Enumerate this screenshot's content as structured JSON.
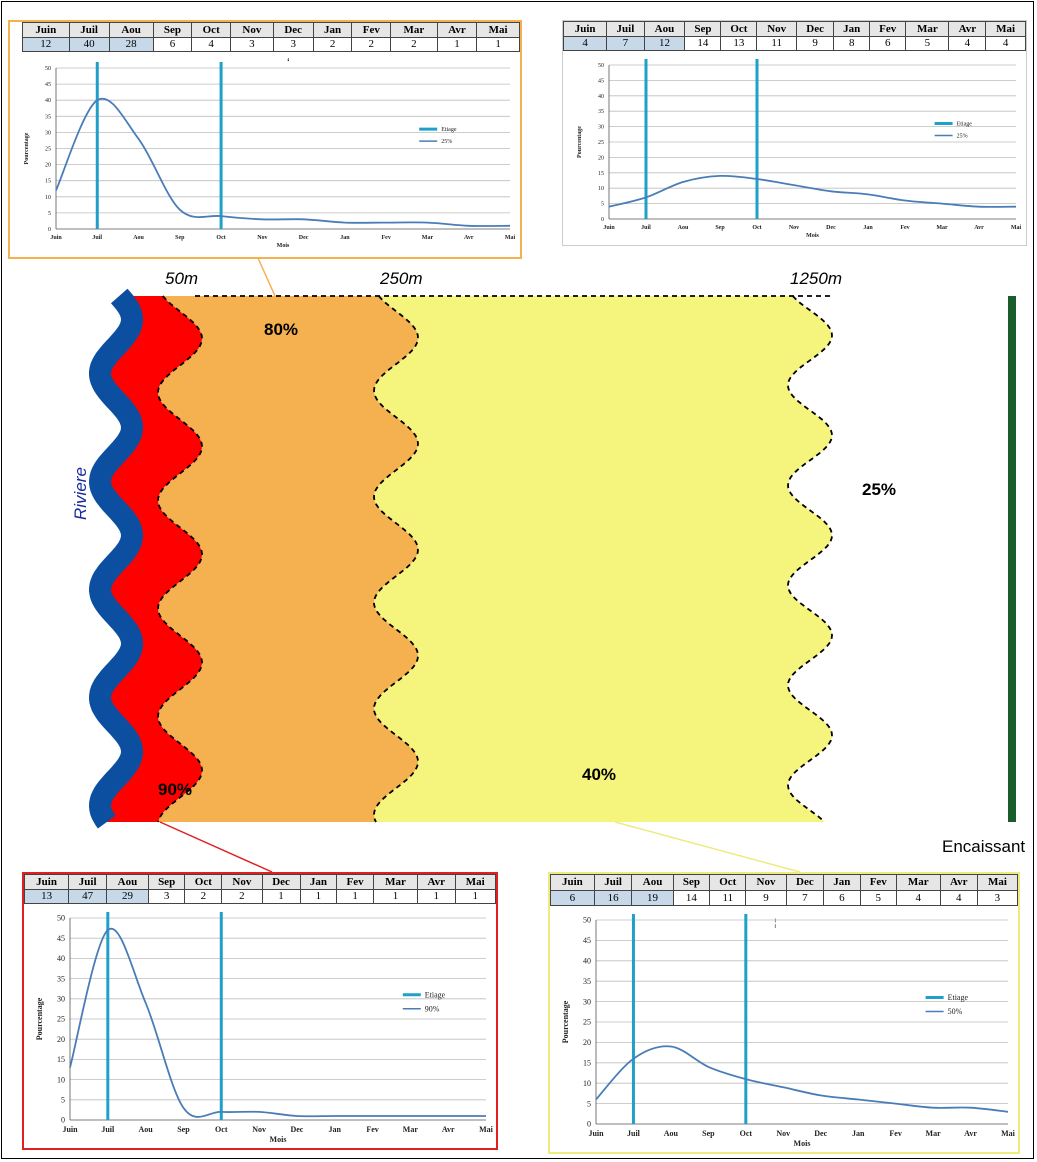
{
  "months": [
    "Juin",
    "Juil",
    "Aou",
    "Sep",
    "Oct",
    "Nov",
    "Dec",
    "Jan",
    "Fev",
    "Mar",
    "Avr",
    "Mai"
  ],
  "axis_months": [
    "Juin",
    "Juil",
    "Aou",
    "Sep",
    "Oct",
    "Nov",
    "Dec",
    "Jan",
    "Fev",
    "Mar",
    "Avr",
    "Mai"
  ],
  "axis_months_50": [
    "Juin",
    "Juil",
    "Aou",
    "Sep",
    "Oct",
    "Nov",
    "Dec",
    "Jan",
    "Fev",
    "Mar",
    "Avr",
    "Mai"
  ],
  "diagram": {
    "dist_50": "50m",
    "dist_250": "250m",
    "dist_1250": "1250m",
    "river": "Riviere",
    "encaissant": "Encaissant",
    "p90": "90%",
    "p80": "80%",
    "p40": "40%",
    "p25": "25%",
    "colors": {
      "river": "#0c4fa0",
      "zone90": "#ff0000",
      "zone80": "#f5b050",
      "zone40": "#f5f47c",
      "encaissant": "#1a5c2a"
    }
  },
  "charts_text": {
    "c80_mark": "ʻ",
    "c50_mark": "¦"
  },
  "chart_data": [
    {
      "id": "c80",
      "type": "line",
      "zone": "80%",
      "x": [
        "Juin",
        "Juil",
        "Aou",
        "Sep",
        "Oct",
        "Nov",
        "Dec",
        "Jan",
        "Fev",
        "Mar",
        "Avr",
        "Mai"
      ],
      "table_values": [
        12,
        40,
        28,
        6,
        4,
        3,
        3,
        2,
        2,
        2,
        1,
        1
      ],
      "series": [
        {
          "name": "25%",
          "values": [
            12,
            40,
            28,
            6,
            4,
            3,
            3,
            2,
            2,
            2,
            1,
            1
          ]
        }
      ],
      "legend": [
        "Etiage",
        "25%"
      ],
      "etiage_at": [
        "Juil",
        "Oct"
      ],
      "xlabel": "Mois",
      "ylabel": "Pourcentage",
      "ylim": [
        0,
        50
      ],
      "yticks": [
        0,
        5,
        10,
        15,
        20,
        25,
        30,
        35,
        40,
        45,
        50
      ],
      "border": "#f5b050",
      "highlight": [
        0,
        1,
        2
      ]
    },
    {
      "id": "c25",
      "type": "line",
      "zone": "25%",
      "x": [
        "Juin",
        "Juil",
        "Aou",
        "Sep",
        "Oct",
        "Nov",
        "Dec",
        "Jan",
        "Fev",
        "Mar",
        "Avr",
        "Mai"
      ],
      "table_values": [
        4,
        7,
        12,
        14,
        13,
        11,
        9,
        8,
        6,
        5,
        4,
        4
      ],
      "series": [
        {
          "name": "25%",
          "values": [
            4,
            7,
            12,
            14,
            13,
            11,
            9,
            8,
            6,
            5,
            4,
            4
          ]
        }
      ],
      "legend": [
        "Etiage",
        "25%"
      ],
      "etiage_at": [
        "Juil",
        "Oct"
      ],
      "xlabel": "Mois",
      "ylabel": "Pourcentage",
      "ylim": [
        0,
        50
      ],
      "yticks": [
        0,
        5,
        10,
        15,
        20,
        25,
        30,
        35,
        40,
        45,
        50
      ],
      "border": "#aaaaaa",
      "highlight": [
        0,
        1,
        2
      ]
    },
    {
      "id": "c90",
      "type": "line",
      "zone": "90%",
      "x": [
        "Juin",
        "Juil",
        "Aou",
        "Sep",
        "Oct",
        "Nov",
        "Dec",
        "Jan",
        "Fev",
        "Mar",
        "Avr",
        "Mai"
      ],
      "table_values": [
        13,
        47,
        29,
        3,
        2,
        2,
        1,
        1,
        1,
        1,
        1,
        1
      ],
      "series": [
        {
          "name": "90%",
          "values": [
            13,
            47,
            29,
            3,
            2,
            2,
            1,
            1,
            1,
            1,
            1,
            1
          ]
        }
      ],
      "legend": [
        "Etiage",
        "90%"
      ],
      "etiage_at": [
        "Juil",
        "Oct"
      ],
      "xlabel": "Mois",
      "ylabel": "Pourcentage",
      "ylim": [
        0,
        50
      ],
      "yticks": [
        0,
        5,
        10,
        15,
        20,
        25,
        30,
        35,
        40,
        45,
        50
      ],
      "border": "#e02020",
      "highlight": [
        0,
        1,
        2
      ]
    },
    {
      "id": "c50",
      "type": "line",
      "zone": "40%",
      "x": [
        "Juin",
        "Juil",
        "Aou",
        "Sep",
        "Oct",
        "Nov",
        "Dec",
        "Jan",
        "Fev",
        "Mar",
        "Avr",
        "Mai"
      ],
      "table_values": [
        6,
        16,
        19,
        14,
        11,
        9,
        7,
        6,
        5,
        4,
        4,
        3
      ],
      "series": [
        {
          "name": "50%",
          "values": [
            6,
            16,
            19,
            14,
            11,
            9,
            7,
            6,
            5,
            4,
            4,
            3
          ]
        }
      ],
      "legend": [
        "Etiage",
        "50%"
      ],
      "etiage_at": [
        "Juil",
        "Oct"
      ],
      "xlabel": "Mois",
      "ylabel": "Pourcentage",
      "ylim": [
        0,
        50
      ],
      "yticks": [
        0,
        5,
        10,
        15,
        20,
        25,
        30,
        35,
        40,
        45,
        50
      ],
      "border": "#eeea80",
      "highlight": [
        0,
        1,
        2
      ]
    }
  ]
}
